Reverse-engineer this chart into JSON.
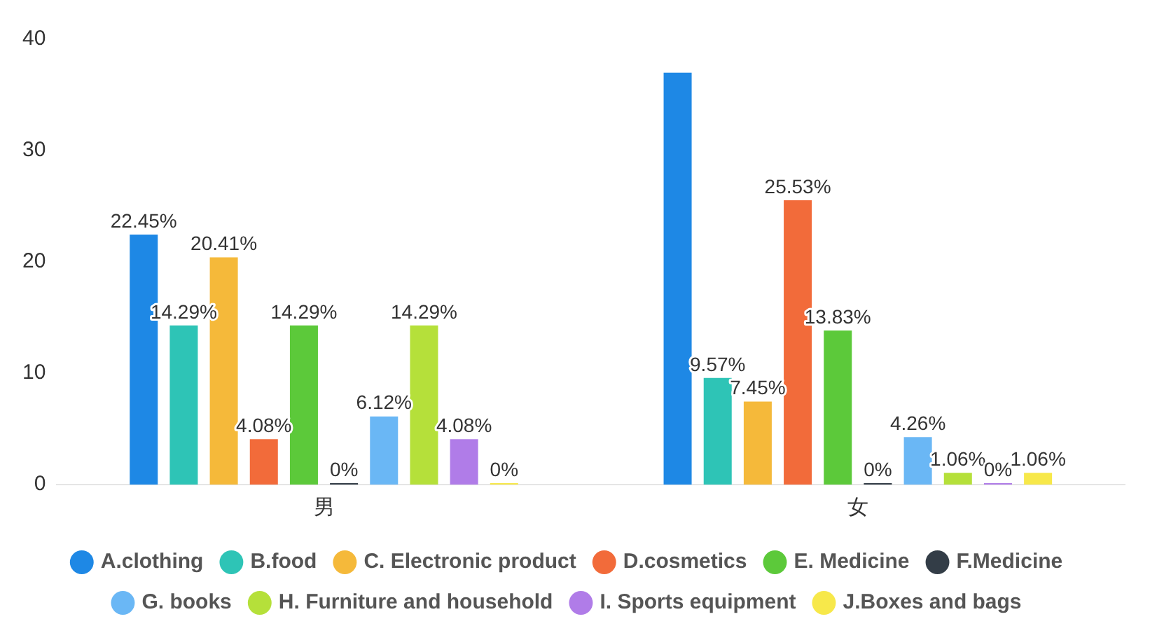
{
  "chart_data": {
    "type": "bar",
    "categories": [
      "男",
      "女"
    ],
    "series": [
      {
        "name": "A.clothing",
        "color": "#1e88e5",
        "values": [
          22.45,
          37
        ],
        "value_labels": [
          "22.45%",
          null
        ]
      },
      {
        "name": "B.food",
        "color": "#2ec4b6",
        "values": [
          14.29,
          9.57
        ],
        "value_labels": [
          "14.29%",
          "9.57%"
        ]
      },
      {
        "name": "C. Electronic product",
        "color": "#f5b93a",
        "values": [
          20.41,
          7.45
        ],
        "value_labels": [
          "20.41%",
          "7.45%"
        ]
      },
      {
        "name": "D.cosmetics",
        "color": "#f26b3a",
        "values": [
          4.08,
          25.53
        ],
        "value_labels": [
          "4.08%",
          "25.53%"
        ]
      },
      {
        "name": "E. Medicine",
        "color": "#5cc93a",
        "values": [
          14.29,
          13.83
        ],
        "value_labels": [
          "14.29%",
          "13.83%"
        ]
      },
      {
        "name": "F.Medicine",
        "color": "#333d47",
        "values": [
          0,
          0
        ],
        "value_labels": [
          "0%",
          "0%"
        ]
      },
      {
        "name": "G. books",
        "color": "#6ab7f5",
        "values": [
          6.12,
          4.26
        ],
        "value_labels": [
          "6.12%",
          "4.26%"
        ]
      },
      {
        "name": "H. Furniture and household",
        "color": "#b5e03a",
        "values": [
          14.29,
          1.06
        ],
        "value_labels": [
          "14.29%",
          "1.06%"
        ]
      },
      {
        "name": "I. Sports equipment",
        "color": "#b07ce8",
        "values": [
          4.08,
          0
        ],
        "value_labels": [
          "4.08%",
          "0%"
        ]
      },
      {
        "name": "J.Boxes and bags",
        "color": "#f7e84a",
        "values": [
          0,
          1.06
        ],
        "value_labels": [
          "0%",
          "1.06%"
        ]
      }
    ],
    "ylim": [
      0,
      40
    ],
    "yticks": [
      0,
      10,
      20,
      30,
      40
    ],
    "grid": false,
    "legend": "bottom"
  }
}
